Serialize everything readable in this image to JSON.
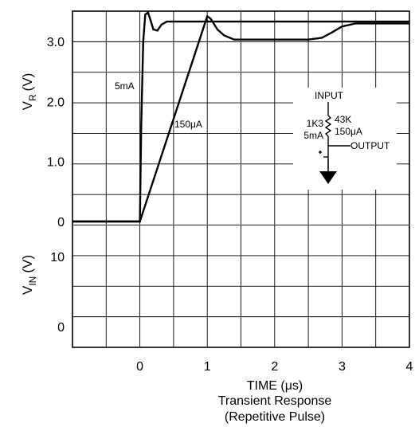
{
  "chart_data": {
    "type": "line",
    "title": "Transient Response",
    "subtitle": "(Repetitive Pulse)",
    "xlabel": "TIME (μs)",
    "ylabel_top": {
      "main": "V",
      "sub": "R",
      "unit": "(V)"
    },
    "ylabel_bottom": {
      "main": "V",
      "sub": "IN",
      "unit": "(V)"
    },
    "xlim": [
      -1,
      4
    ],
    "x_ticks": [
      "0",
      "1",
      "2",
      "3",
      "4"
    ],
    "top_ylim": [
      -0.3,
      3.6
    ],
    "top_y_ticks": [
      "0",
      "1.0",
      "2.0",
      "3.0"
    ],
    "bottom_y_ticks": [
      "10",
      "0"
    ],
    "grid": true,
    "series": [
      {
        "name": "5mA",
        "x": [
          -1,
          0,
          0.02,
          0.05,
          0.08,
          0.12,
          0.16,
          0.2,
          0.26,
          0.32,
          0.4,
          1,
          2,
          3,
          4
        ],
        "y": [
          0,
          0,
          1.6,
          3.0,
          3.45,
          3.48,
          3.35,
          3.2,
          3.18,
          3.28,
          3.33,
          3.33,
          3.33,
          3.33,
          3.33
        ]
      },
      {
        "name": "150μA",
        "x": [
          -1,
          0,
          1,
          1.05,
          1.15,
          1.25,
          1.4,
          2,
          2.5,
          2.7,
          2.85,
          3.0,
          3.2,
          4
        ],
        "y": [
          0,
          0,
          3.42,
          3.38,
          3.2,
          3.1,
          3.03,
          3.03,
          3.03,
          3.06,
          3.15,
          3.25,
          3.3,
          3.3
        ]
      }
    ],
    "annotations": {
      "series_label_5ma": "5mA",
      "series_label_150ua": "150μA"
    }
  },
  "circuit": {
    "input_label": "INPUT",
    "r1_label": "1K3",
    "r1_current": "5mA",
    "r2_label": "43K",
    "r2_current": "150μA",
    "output_label": "OUTPUT"
  }
}
